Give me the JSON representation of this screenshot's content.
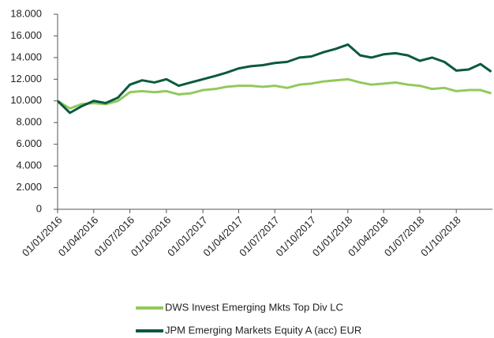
{
  "chart_data": {
    "type": "line",
    "x": [
      "2016-01-01",
      "2016-02-01",
      "2016-03-01",
      "2016-04-01",
      "2016-05-01",
      "2016-06-01",
      "2016-07-01",
      "2016-08-01",
      "2016-09-01",
      "2016-10-01",
      "2016-11-01",
      "2016-12-01",
      "2017-01-01",
      "2017-02-01",
      "2017-03-01",
      "2017-04-01",
      "2017-05-01",
      "2017-06-01",
      "2017-07-01",
      "2017-08-01",
      "2017-09-01",
      "2017-10-01",
      "2017-11-01",
      "2017-12-01",
      "2018-01-01",
      "2018-02-01",
      "2018-03-01",
      "2018-04-01",
      "2018-05-01",
      "2018-06-01",
      "2018-07-01",
      "2018-08-01",
      "2018-09-01",
      "2018-10-01",
      "2018-11-01",
      "2018-12-01",
      "2018-12-28"
    ],
    "series": [
      {
        "name": "DWS Invest Emerging Mkts Top Div LC",
        "color": "#92c95c",
        "values": [
          10000,
          9300,
          9700,
          9800,
          9700,
          10000,
          10800,
          10900,
          10800,
          10900,
          10600,
          10700,
          11000,
          11100,
          11300,
          11400,
          11400,
          11300,
          11400,
          11200,
          11500,
          11600,
          11800,
          11900,
          12000,
          11700,
          11500,
          11600,
          11700,
          11500,
          11400,
          11100,
          11200,
          10900,
          11000,
          11000,
          10700
        ]
      },
      {
        "name": "JPM Emerging Markets Equity A (acc) EUR",
        "color": "#0b5a3c",
        "values": [
          10000,
          8900,
          9500,
          10000,
          9800,
          10300,
          11500,
          11900,
          11700,
          12000,
          11400,
          11700,
          12000,
          12300,
          12600,
          13000,
          13200,
          13300,
          13500,
          13600,
          14000,
          14100,
          14500,
          14800,
          15200,
          14200,
          14000,
          14300,
          14400,
          14200,
          13700,
          14000,
          13600,
          12800,
          12900,
          13400,
          12700
        ]
      }
    ],
    "xlim": [
      "2016-01-01",
      "2018-12-31"
    ],
    "xticks": [
      {
        "value": "2016-01-01",
        "label": "01/01/2016"
      },
      {
        "value": "2016-04-01",
        "label": "01/04/2016"
      },
      {
        "value": "2016-07-01",
        "label": "01/07/2016"
      },
      {
        "value": "2016-10-01",
        "label": "01/10/2016"
      },
      {
        "value": "2017-01-01",
        "label": "01/01/2017"
      },
      {
        "value": "2017-04-01",
        "label": "01/04/2017"
      },
      {
        "value": "2017-07-01",
        "label": "01/07/2017"
      },
      {
        "value": "2017-10-01",
        "label": "01/10/2017"
      },
      {
        "value": "2018-01-01",
        "label": "01/01/2018"
      },
      {
        "value": "2018-04-01",
        "label": "01/04/2018"
      },
      {
        "value": "2018-07-01",
        "label": "01/07/2018"
      },
      {
        "value": "2018-10-01",
        "label": "01/10/2018"
      }
    ],
    "ylim": [
      0,
      18000
    ],
    "yticks": [
      0,
      {
        "value": 2000,
        "label": "2.000"
      },
      {
        "value": 4000,
        "label": "4.000"
      },
      {
        "value": 6000,
        "label": "6.000"
      },
      {
        "value": 8000,
        "label": "8.000"
      },
      {
        "value": 10000,
        "label": "10.000"
      },
      {
        "value": 12000,
        "label": "12.000"
      },
      {
        "value": 14000,
        "label": "14.000"
      },
      {
        "value": 16000,
        "label": "16.000"
      },
      {
        "value": 18000,
        "label": "18.000"
      }
    ],
    "grid": false
  }
}
